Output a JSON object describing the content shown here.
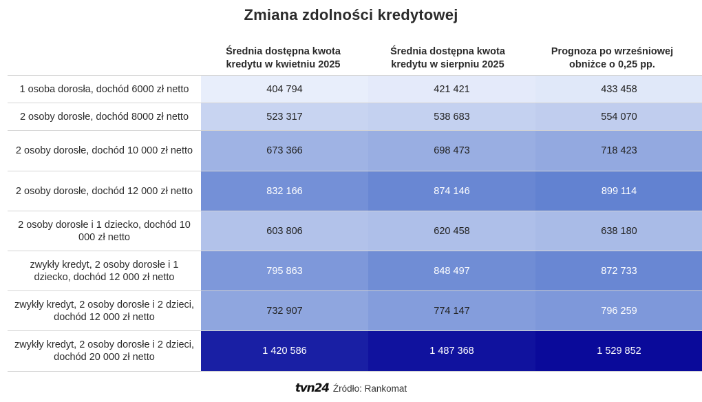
{
  "title": "Zmiana zdolności kredytowej",
  "chart_data": {
    "type": "table",
    "title": "Zmiana zdolności kredytowej",
    "columns": [
      "Średnia dostępna kwota\nkredytu w kwietniu 2025",
      "Średnia dostępna kwota\nkredytu w sierpniu 2025",
      "Prognoza po wrześniowej\nobniżce o 0,25 pp."
    ],
    "rows": [
      {
        "label": "1 osoba dorosła, dochód 6000 zł netto",
        "values": [
          404794,
          421421,
          433458
        ],
        "display": [
          "404 794",
          "421 421",
          "433 458"
        ]
      },
      {
        "label": "2 osoby dorosłe, dochód 8000 zł netto",
        "values": [
          523317,
          538683,
          554070
        ],
        "display": [
          "523 317",
          "538 683",
          "554 070"
        ]
      },
      {
        "label": "2 osoby dorosłe, dochód 10 000 zł netto",
        "values": [
          673366,
          698473,
          718423
        ],
        "display": [
          "673 366",
          "698 473",
          "718 423"
        ]
      },
      {
        "label": "2 osoby dorosłe, dochód 12 000 zł netto",
        "values": [
          832166,
          874146,
          899114
        ],
        "display": [
          "832 166",
          "874 146",
          "899 114"
        ]
      },
      {
        "label": "2 osoby dorosłe i 1 dziecko, dochód 10 000 zł netto",
        "values": [
          603806,
          620458,
          638180
        ],
        "display": [
          "603 806",
          "620 458",
          "638 180"
        ]
      },
      {
        "label": "zwykły kredyt, 2 osoby dorosłe i 1 dziecko, dochód 12 000 zł netto",
        "values": [
          795863,
          848497,
          872733
        ],
        "display": [
          "795 863",
          "848 497",
          "872 733"
        ]
      },
      {
        "label": "zwykły kredyt, 2 osoby dorosłe i 2 dzieci, dochód 12 000 zł netto",
        "values": [
          732907,
          774147,
          796259
        ],
        "display": [
          "732 907",
          "774 147",
          "796 259"
        ]
      },
      {
        "label": "zwykły kredyt, 2 osoby dorosłe i 2 dzieci, dochód 20 000 zł netto",
        "values": [
          1420586,
          1487368,
          1529852
        ],
        "display": [
          "1 420 586",
          "1 487 368",
          "1 529 852"
        ]
      }
    ],
    "heatmap_colors": {
      "low": "#e8eefb",
      "mid": "#5f7fd0",
      "high": "#0a0a9a"
    }
  },
  "footer": {
    "logo_text": "tvn24",
    "source": "Źródło: Rankomat"
  }
}
